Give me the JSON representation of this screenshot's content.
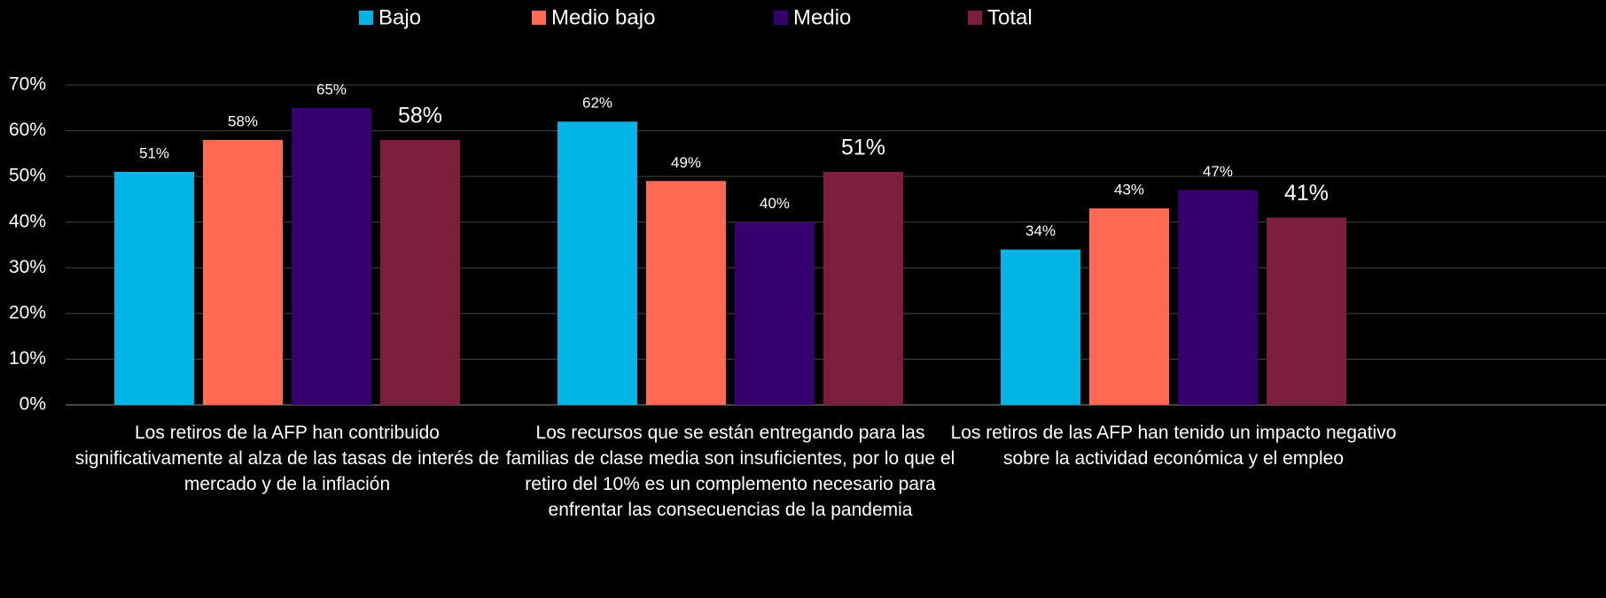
{
  "chart_data": {
    "type": "bar",
    "categories": [
      "Los retiros de la AFP han contribuido significativamente al alza de las tasas de interés de mercado y de la inflación",
      "Los recursos que se están entregando para las familias de clase media son insuficientes, por lo que el retiro del 10% es un complemento necesario para enfrentar las consecuencias de la pandemia",
      "Los retiros de las AFP han tenido un impacto negativo sobre la actividad económica y el empleo"
    ],
    "series": [
      {
        "name": "Bajo",
        "color": "#00b5e6",
        "values": [
          51,
          62,
          34
        ],
        "value_labels": [
          "51%",
          "62%",
          "34%"
        ]
      },
      {
        "name": "Medio bajo",
        "color": "#ff6a55",
        "values": [
          58,
          49,
          43
        ],
        "value_labels": [
          "58%",
          "49%",
          "43%"
        ]
      },
      {
        "name": "Medio",
        "color": "#36006f",
        "values": [
          65,
          40,
          47
        ],
        "value_labels": [
          "65%",
          "40%",
          "47%"
        ]
      },
      {
        "name": "Total",
        "color": "#7b1f3c",
        "values": [
          58,
          51,
          41
        ],
        "value_labels": [
          "58%",
          "51%",
          "41%"
        ]
      }
    ],
    "ylim": [
      0,
      70
    ],
    "yticks": [
      {
        "value": 0,
        "label": "0%"
      },
      {
        "value": 10,
        "label": "10%"
      },
      {
        "value": 20,
        "label": "20%"
      },
      {
        "value": 30,
        "label": "30%"
      },
      {
        "value": 40,
        "label": "40%"
      },
      {
        "value": 50,
        "label": "50%"
      },
      {
        "value": 60,
        "label": "60%"
      },
      {
        "value": 70,
        "label": "70%"
      }
    ],
    "grid": true,
    "legend": "top"
  }
}
